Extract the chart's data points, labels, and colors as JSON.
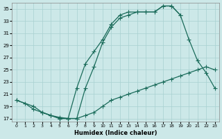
{
  "xlabel": "Humidex (Indice chaleur)",
  "bg_color": "#cce8e8",
  "line_color": "#1a6b5a",
  "xlim": [
    -0.5,
    23.5
  ],
  "ylim": [
    16.5,
    36.0
  ],
  "yticks": [
    17,
    19,
    21,
    23,
    25,
    27,
    29,
    31,
    33,
    35
  ],
  "xticks": [
    0,
    1,
    2,
    3,
    4,
    5,
    6,
    7,
    8,
    9,
    10,
    11,
    12,
    13,
    14,
    15,
    16,
    17,
    18,
    19,
    20,
    21,
    22,
    23
  ],
  "line1_x": [
    0,
    1,
    2,
    3,
    4,
    5,
    6,
    7,
    8,
    9,
    10,
    11,
    12,
    13,
    14,
    15,
    16,
    17,
    18,
    19,
    20,
    21,
    22,
    23
  ],
  "line1_y": [
    20.0,
    19.5,
    18.5,
    18.0,
    17.5,
    17.2,
    17.0,
    17.0,
    17.5,
    18.0,
    19.0,
    20.0,
    20.5,
    21.0,
    21.5,
    22.0,
    22.5,
    23.0,
    23.5,
    24.0,
    24.5,
    25.0,
    25.5,
    25.0
  ],
  "line2_x": [
    0,
    2,
    3,
    4,
    5,
    6,
    7,
    8,
    9,
    10,
    11,
    12,
    13,
    14,
    15,
    16,
    17,
    18,
    19,
    20,
    21,
    22,
    23
  ],
  "line2_y": [
    20.0,
    19.0,
    18.0,
    17.5,
    17.0,
    17.0,
    17.0,
    22.0,
    25.5,
    29.5,
    32.0,
    33.5,
    34.0,
    34.5,
    34.5,
    34.5,
    35.5,
    35.5,
    34.0,
    30.0,
    26.5,
    24.5,
    22.0
  ],
  "line3_x": [
    3,
    4,
    5,
    6,
    7,
    8,
    9,
    10,
    11,
    12,
    13,
    14,
    15,
    16,
    17,
    18,
    19
  ],
  "line3_y": [
    18.0,
    17.5,
    17.0,
    17.0,
    22.0,
    26.0,
    28.0,
    30.0,
    32.5,
    34.0,
    34.5,
    34.5,
    34.5,
    34.5,
    35.5,
    35.5,
    34.0
  ]
}
